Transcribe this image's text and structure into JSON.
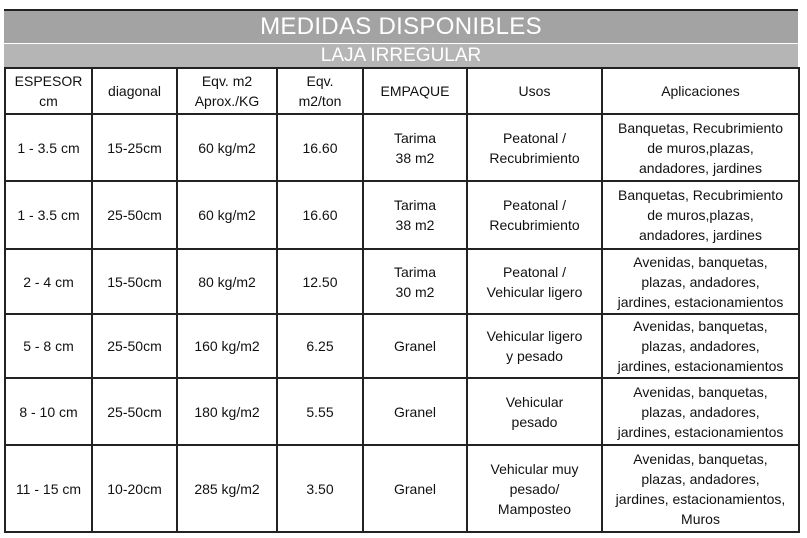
{
  "title": "MEDIDAS DISPONIBLES",
  "subtitle": "LAJA IRREGULAR",
  "headers": [
    [
      "ESPESOR",
      "cm"
    ],
    [
      "diagonal"
    ],
    [
      "Eqv. m2",
      "Aprox./KG"
    ],
    [
      "Eqv.",
      "m2/ton"
    ],
    [
      "EMPAQUE"
    ],
    [
      "Usos"
    ],
    [
      "Aplicaciones"
    ]
  ],
  "rows": [
    {
      "espesor": "1 - 3.5 cm",
      "diagonal": "15-25cm",
      "eqv_kg": "60 kg/m2",
      "eqv_ton": "16.60",
      "empaque": [
        "Tarima",
        "38 m2"
      ],
      "usos": [
        "Peatonal /",
        "Recubrimiento"
      ],
      "aplicaciones": [
        "Banquetas, Recubrimiento",
        "de muros,plazas,",
        "andadores, jardines"
      ]
    },
    {
      "espesor": "1 - 3.5 cm",
      "diagonal": "25-50cm",
      "eqv_kg": "60 kg/m2",
      "eqv_ton": "16.60",
      "empaque": [
        "Tarima",
        "38 m2"
      ],
      "usos": [
        "Peatonal /",
        "Recubrimiento"
      ],
      "aplicaciones": [
        "Banquetas, Recubrimiento",
        "de muros,plazas,",
        "andadores, jardines"
      ]
    },
    {
      "espesor": "2 - 4 cm",
      "diagonal": "15-50cm",
      "eqv_kg": "80 kg/m2",
      "eqv_ton": "12.50",
      "empaque": [
        "Tarima",
        "30 m2"
      ],
      "usos": [
        "Peatonal /",
        "Vehicular ligero"
      ],
      "aplicaciones": [
        "Avenidas, banquetas,",
        "plazas, andadores,",
        "jardines, estacionamientos"
      ]
    },
    {
      "espesor": "5 - 8 cm",
      "diagonal": "25-50cm",
      "eqv_kg": "160 kg/m2",
      "eqv_ton": "6.25",
      "empaque": [
        "Granel"
      ],
      "usos": [
        "Vehicular ligero",
        "y pesado"
      ],
      "aplicaciones": [
        "Avenidas, banquetas,",
        "plazas, andadores,",
        "jardines, estacionamientos"
      ]
    },
    {
      "espesor": "8 - 10 cm",
      "diagonal": "25-50cm",
      "eqv_kg": "180 kg/m2",
      "eqv_ton": "5.55",
      "empaque": [
        "Granel"
      ],
      "usos": [
        "Vehicular",
        "pesado"
      ],
      "aplicaciones": [
        "Avenidas, banquetas,",
        "plazas, andadores,",
        "jardines, estacionamientos"
      ]
    },
    {
      "espesor": "11 - 15 cm",
      "diagonal": "10-20cm",
      "eqv_kg": "285 kg/m2",
      "eqv_ton": "3.50",
      "empaque": [
        "Granel"
      ],
      "usos": [
        "Vehicular muy",
        "pesado/",
        "Mamposteo"
      ],
      "aplicaciones": [
        "Avenidas, banquetas,",
        "plazas, andadores,",
        "jardines, estacionamientos,",
        "Muros"
      ]
    }
  ]
}
